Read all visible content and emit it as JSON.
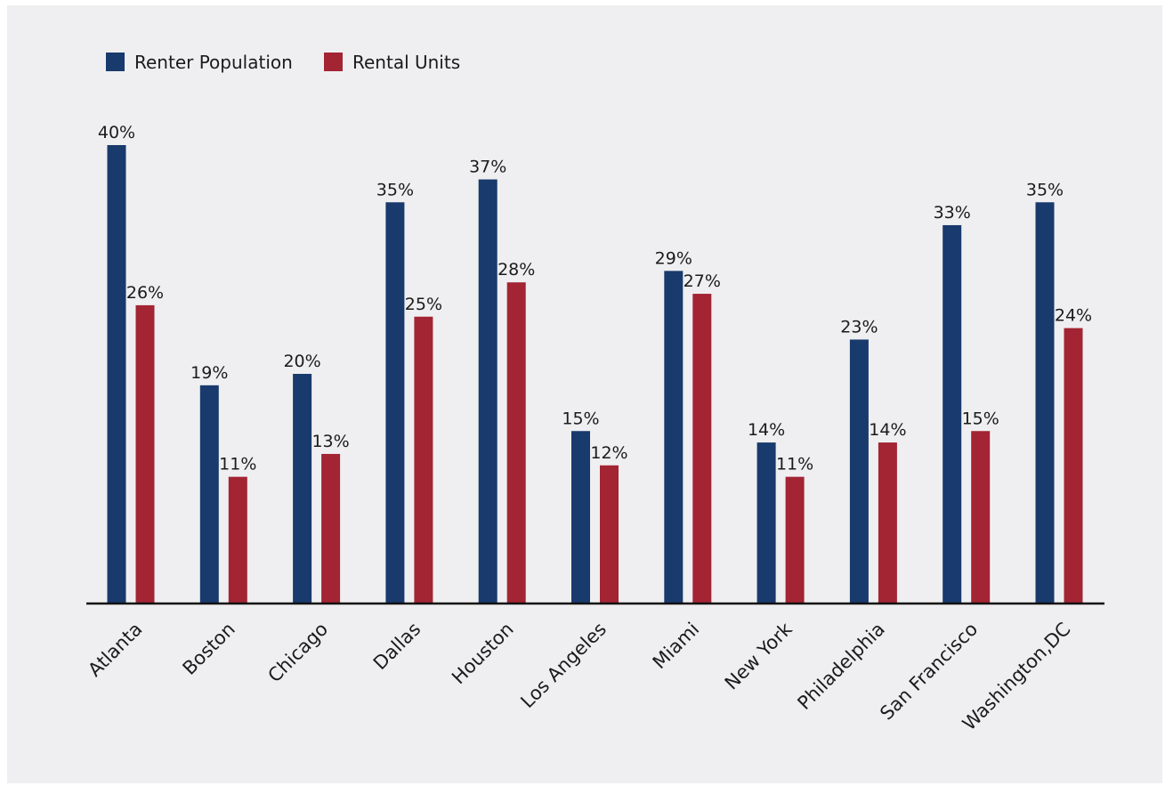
{
  "chart_data": {
    "type": "bar",
    "title": "",
    "xlabel": "",
    "ylabel": "",
    "ylim": [
      0,
      40
    ],
    "grid": false,
    "legend_position": "top-left",
    "value_suffix": "%",
    "categories": [
      "Atlanta",
      "Boston",
      "Chicago",
      "Dallas",
      "Houston",
      "Los Angeles",
      "Miami",
      "New York",
      "Philadelphia",
      "San Francisco",
      "Washington,DC"
    ],
    "series": [
      {
        "name": "Renter Population",
        "color": "#183a6d",
        "values": [
          40,
          19,
          20,
          35,
          37,
          15,
          29,
          14,
          23,
          33,
          35
        ]
      },
      {
        "name": "Rental Units",
        "color": "#a32433",
        "values": [
          26,
          11,
          13,
          25,
          28,
          12,
          27,
          11,
          14,
          15,
          24
        ]
      }
    ]
  }
}
